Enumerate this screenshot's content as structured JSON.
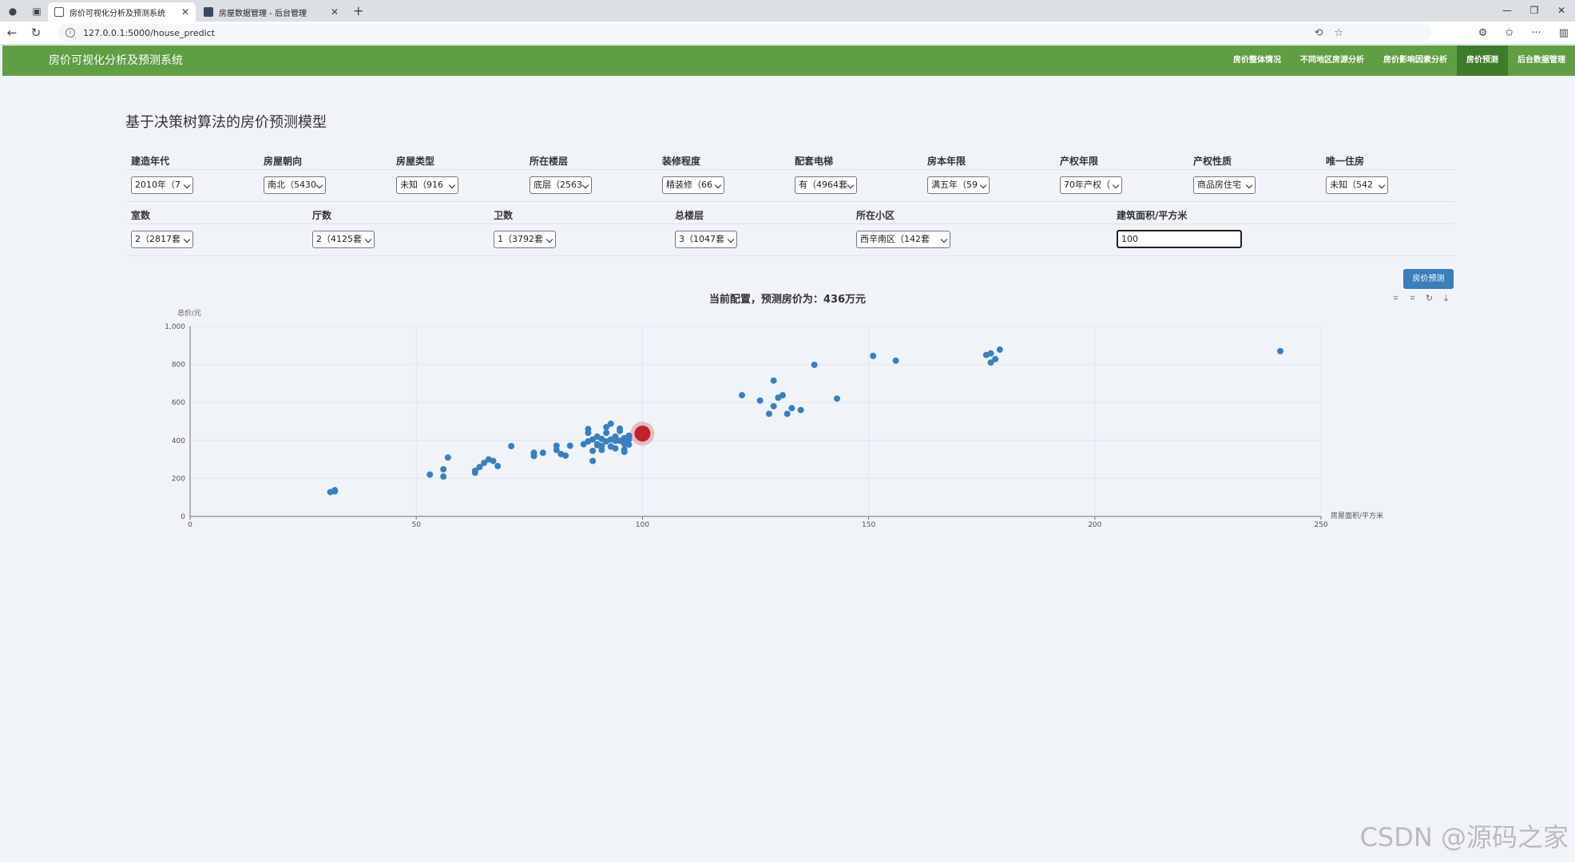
{
  "browser": {
    "tabs": [
      {
        "label": "房价可视化分析及预测系统",
        "active": true
      },
      {
        "label": "房屋数据管理 - 后台管理",
        "active": false
      }
    ],
    "url": "127.0.0.1:5000/house_predict"
  },
  "nav": {
    "brand": "房价可视化分析及预测系统",
    "items": [
      {
        "label": "房价整体情况",
        "active": false
      },
      {
        "label": "不同地区房源分析",
        "active": false
      },
      {
        "label": "房价影响因素分析",
        "active": false
      },
      {
        "label": "房价预测",
        "active": true
      },
      {
        "label": "后台数据管理",
        "active": false
      }
    ]
  },
  "page": {
    "title": "基于决策树算法的房价预测模型",
    "result_text": "当前配置，预测房价为：436万元",
    "predict_button": "房价预测"
  },
  "form": {
    "row1": [
      {
        "label": "建造年代",
        "value": "2010年（7"
      },
      {
        "label": "房屋朝向",
        "value": "南北（5430"
      },
      {
        "label": "房屋类型",
        "value": "未知（916"
      },
      {
        "label": "所在楼层",
        "value": "底层（2563"
      },
      {
        "label": "装修程度",
        "value": "精装修（66"
      },
      {
        "label": "配套电梯",
        "value": "有（4964套"
      },
      {
        "label": "房本年限",
        "value": "满五年（59"
      },
      {
        "label": "产权年限",
        "value": "70年产权（"
      },
      {
        "label": "产权性质",
        "value": "商品房住宅"
      },
      {
        "label": "唯一住房",
        "value": "未知（542"
      }
    ],
    "row2": [
      {
        "label": "室数",
        "value": "2（2817套"
      },
      {
        "label": "厅数",
        "value": "2（4125套"
      },
      {
        "label": "卫数",
        "value": "1（3792套"
      },
      {
        "label": "总楼层",
        "value": "3（1047套"
      },
      {
        "label": "所在小区",
        "value": "西辛南区（142套"
      },
      {
        "label": "建筑面积/平方米",
        "value": "100"
      }
    ]
  },
  "colors": {
    "nav_bg": "#609e43",
    "nav_active": "#3e7c2b",
    "button": "#3c7dbb",
    "point": "#3a7fc0",
    "highlight": "#c2202a"
  },
  "watermark": "CSDN @源码之家",
  "chart_data": {
    "type": "scatter",
    "title": "",
    "xlabel": "房屋面积/平方米",
    "ylabel": "总价/元",
    "xlim": [
      0,
      250
    ],
    "ylim": [
      0,
      1000
    ],
    "xticks": [
      "0",
      "50",
      "100",
      "150",
      "200",
      "250"
    ],
    "yticks": [
      "0",
      "200",
      "400",
      "600",
      "800",
      "1,000"
    ],
    "grid": true,
    "series": [
      {
        "points": [
          [
            31,
            128
          ],
          [
            32,
            138
          ],
          [
            32,
            132
          ],
          [
            53,
            220
          ],
          [
            56,
            210
          ],
          [
            56,
            248
          ],
          [
            57,
            310
          ],
          [
            63,
            230
          ],
          [
            63,
            240
          ],
          [
            64,
            260
          ],
          [
            65,
            282
          ],
          [
            66,
            300
          ],
          [
            67,
            292
          ],
          [
            68,
            265
          ],
          [
            71,
            370
          ],
          [
            76,
            318
          ],
          [
            76,
            335
          ],
          [
            78,
            335
          ],
          [
            81,
            350
          ],
          [
            81,
            372
          ],
          [
            82,
            328
          ],
          [
            83,
            320
          ],
          [
            84,
            372
          ],
          [
            87,
            380
          ],
          [
            88,
            395
          ],
          [
            88,
            440
          ],
          [
            88,
            460
          ],
          [
            89,
            345
          ],
          [
            89,
            405
          ],
          [
            89,
            292
          ],
          [
            90,
            420
          ],
          [
            90,
            380
          ],
          [
            90,
            375
          ],
          [
            91,
            372
          ],
          [
            91,
            350
          ],
          [
            91,
            408
          ],
          [
            92,
            440
          ],
          [
            92,
            470
          ],
          [
            92,
            395
          ],
          [
            93,
            488
          ],
          [
            93,
            405
          ],
          [
            93,
            368
          ],
          [
            94,
            358
          ],
          [
            94,
            420
          ],
          [
            94,
            398
          ],
          [
            95,
            450
          ],
          [
            95,
            398
          ],
          [
            95,
            462
          ],
          [
            96,
            412
          ],
          [
            96,
            382
          ],
          [
            96,
            352
          ],
          [
            96,
            340
          ],
          [
            97,
            378
          ],
          [
            97,
            405
          ],
          [
            97,
            425
          ],
          [
            122,
            638
          ],
          [
            126,
            610
          ],
          [
            128,
            540
          ],
          [
            129,
            715
          ],
          [
            129,
            580
          ],
          [
            130,
            625
          ],
          [
            131,
            638
          ],
          [
            132,
            540
          ],
          [
            133,
            570
          ],
          [
            135,
            560
          ],
          [
            138,
            798
          ],
          [
            143,
            620
          ],
          [
            151,
            845
          ],
          [
            156,
            820
          ],
          [
            176,
            850
          ],
          [
            177,
            810
          ],
          [
            177,
            858
          ],
          [
            178,
            828
          ],
          [
            179,
            878
          ],
          [
            241,
            870
          ]
        ]
      },
      {
        "highlight": true,
        "points": [
          [
            100,
            436
          ]
        ]
      }
    ]
  }
}
